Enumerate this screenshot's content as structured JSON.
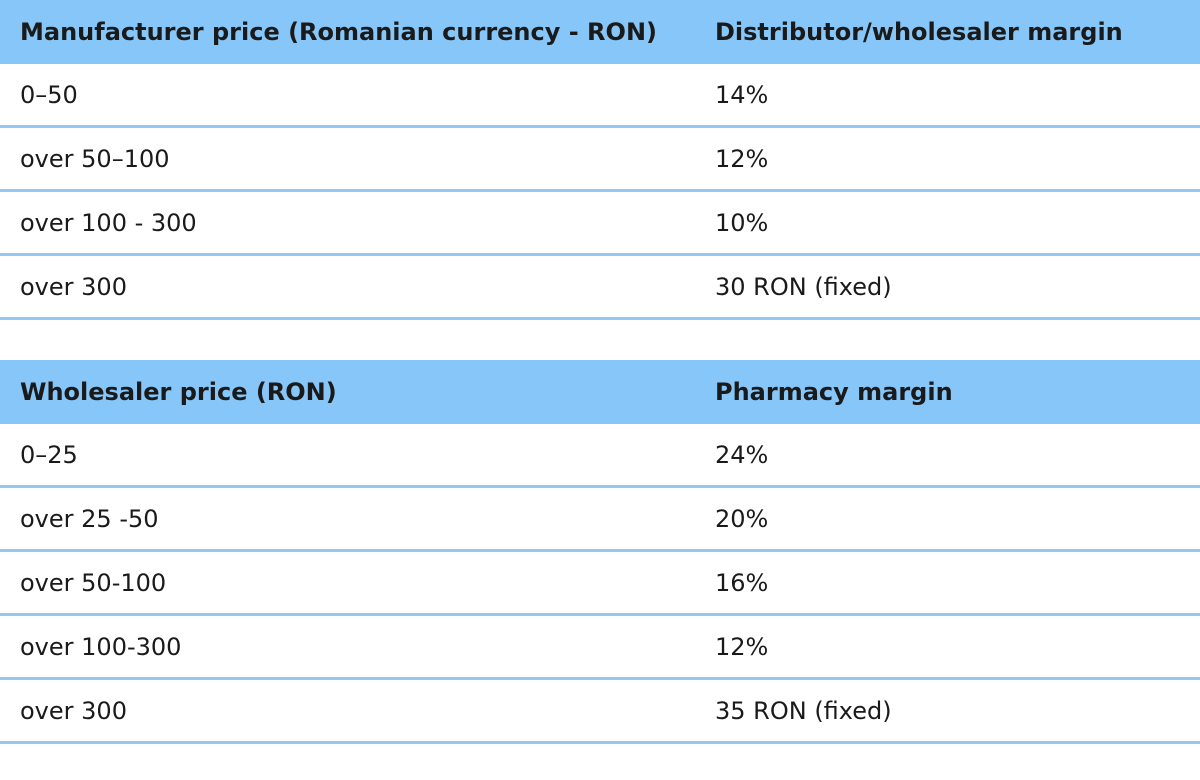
{
  "wholesale_table": {
    "headers": [
      "Manufacturer price (Romanian currency - RON)",
      "Distributor/wholesaler margin"
    ],
    "rows": [
      [
        "0–50",
        "14%"
      ],
      [
        "over 50–100",
        "12%"
      ],
      [
        "over 100 - 300",
        "10%"
      ],
      [
        "over 300",
        "30 RON (fixed)"
      ]
    ]
  },
  "pharmacy_table": {
    "headers": [
      "Wholesaler price (RON)",
      "Pharmacy margin"
    ],
    "rows": [
      [
        "0–25",
        "24%"
      ],
      [
        "over 25 -50",
        "20%"
      ],
      [
        "over 50-100",
        "16%"
      ],
      [
        "over 100-300",
        "12%"
      ],
      [
        "over 300",
        "35 RON (fixed)"
      ]
    ]
  }
}
